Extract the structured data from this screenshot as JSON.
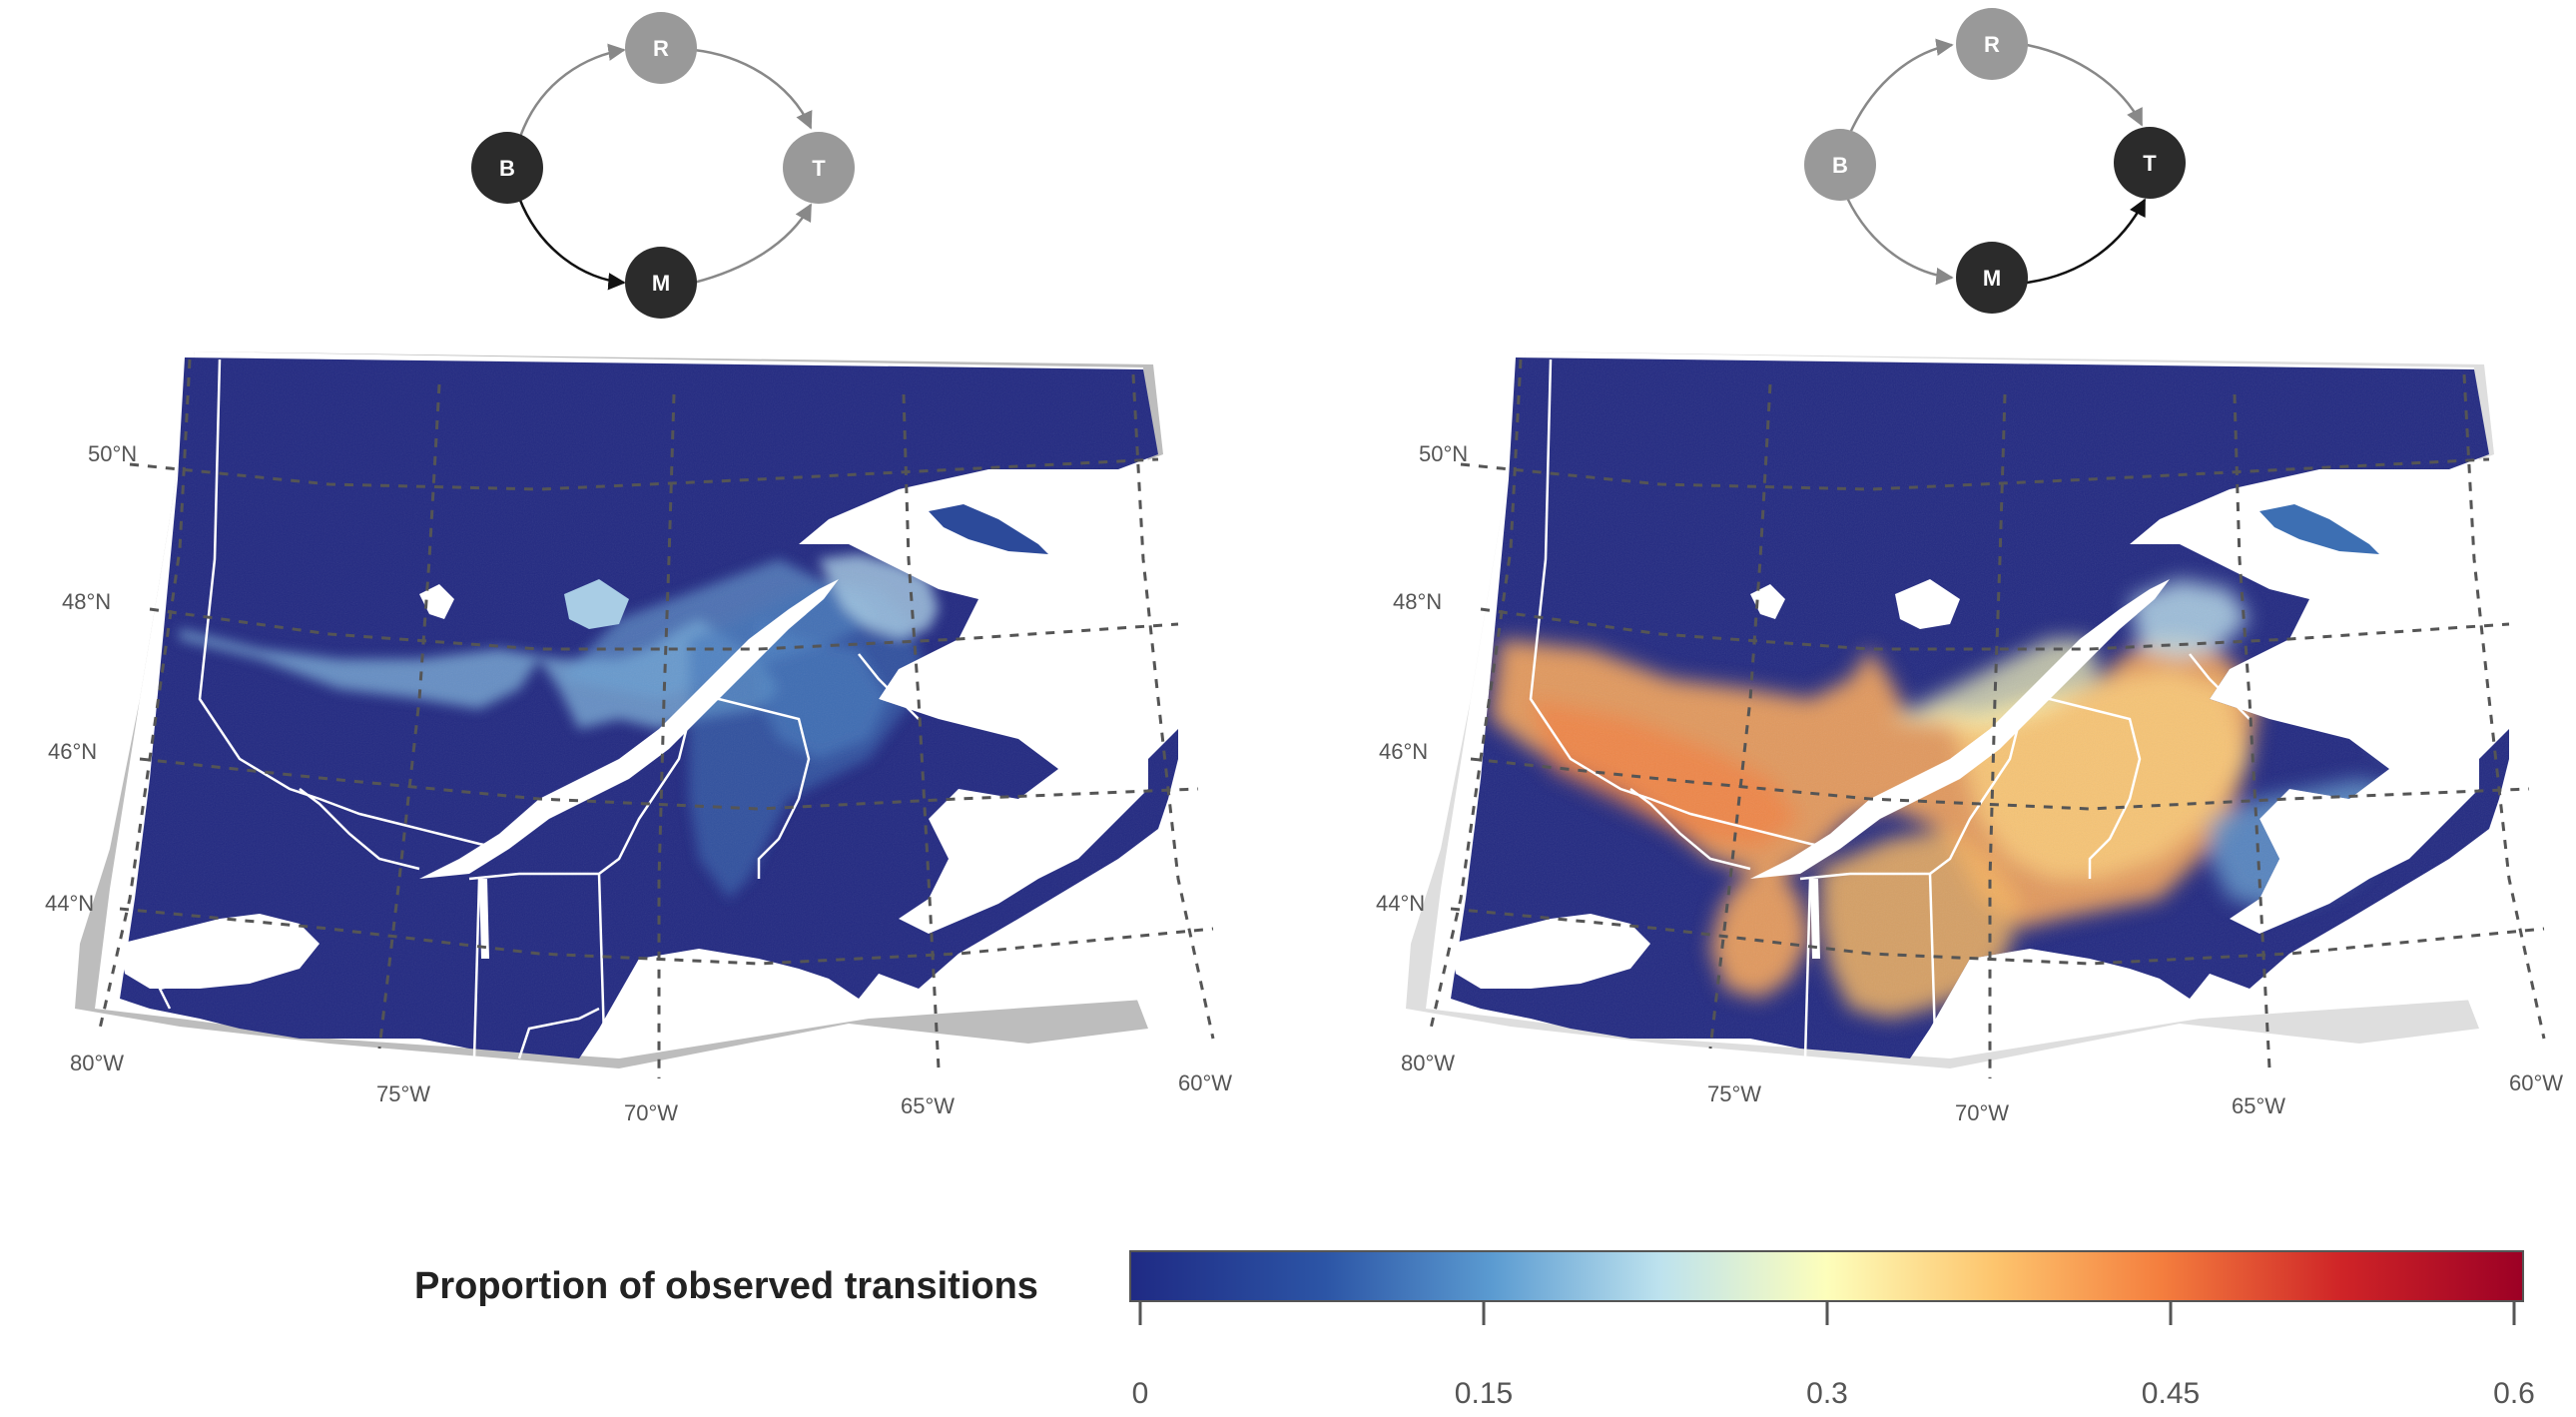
{
  "diagrams": [
    {
      "name": "left",
      "nodes": [
        {
          "id": "R",
          "label": "R",
          "active": false
        },
        {
          "id": "B",
          "label": "B",
          "active": true
        },
        {
          "id": "T",
          "label": "T",
          "active": false
        },
        {
          "id": "M",
          "label": "M",
          "active": true
        }
      ],
      "edges": [
        {
          "from": "B",
          "to": "R",
          "active": false
        },
        {
          "from": "R",
          "to": "T",
          "active": false
        },
        {
          "from": "B",
          "to": "M",
          "active": true
        },
        {
          "from": "M",
          "to": "T",
          "active": false
        }
      ]
    },
    {
      "name": "right",
      "nodes": [
        {
          "id": "R",
          "label": "R",
          "active": false
        },
        {
          "id": "B",
          "label": "B",
          "active": false
        },
        {
          "id": "T",
          "label": "T",
          "active": true
        },
        {
          "id": "M",
          "label": "M",
          "active": true
        }
      ],
      "edges": [
        {
          "from": "B",
          "to": "R",
          "active": false
        },
        {
          "from": "R",
          "to": "T",
          "active": false
        },
        {
          "from": "B",
          "to": "M",
          "active": false
        },
        {
          "from": "M",
          "to": "T",
          "active": true
        }
      ]
    }
  ],
  "colors": {
    "active_node": "#2b2b2b",
    "inactive_node": "#999999",
    "ocean_base": "#232a82",
    "left_frame": "#bdbdbd",
    "right_frame": "#dedede"
  },
  "maps": [
    {
      "name": "left-map",
      "lat_labels": [
        "50°N",
        "48°N",
        "46°N",
        "44°N"
      ],
      "lon_labels": [
        "80°W",
        "75°W",
        "70°W",
        "65°W",
        "60°W"
      ]
    },
    {
      "name": "right-map",
      "lat_labels": [
        "50°N",
        "48°N",
        "46°N",
        "44°N"
      ],
      "lon_labels": [
        "80°W",
        "75°W",
        "70°W",
        "65°W",
        "60°W"
      ]
    }
  ],
  "legend": {
    "title": "Proportion of observed transitions",
    "min": 0,
    "max": 0.6,
    "ticks": [
      "0",
      "0.15",
      "0.3",
      "0.45",
      "0.6"
    ],
    "palette": [
      "#1f2a84",
      "#2c55a6",
      "#5b9bd1",
      "#bde2ee",
      "#fdfebb",
      "#fdc56e",
      "#f47e3e",
      "#cf2427",
      "#9c0025"
    ]
  }
}
